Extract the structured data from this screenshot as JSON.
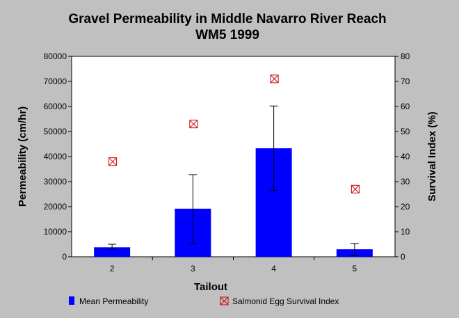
{
  "chart_data": {
    "type": "bar",
    "title": "Gravel Permeability in Middle Navarro River Reach",
    "subtitle": "WM5 1999",
    "xlabel": "Tailout",
    "ylabel": "Permeability (cm/hr)",
    "y2label": "Survival Index (%)",
    "categories": [
      "2",
      "3",
      "4",
      "5"
    ],
    "ylim": [
      0,
      80000
    ],
    "y2lim": [
      0,
      80
    ],
    "yticks": [
      0,
      10000,
      20000,
      30000,
      40000,
      50000,
      60000,
      70000,
      80000
    ],
    "y2ticks": [
      0,
      10,
      20,
      30,
      40,
      50,
      60,
      70,
      80
    ],
    "grid": false,
    "legend_placement": "bottom",
    "series": [
      {
        "name": "Mean Permeability",
        "kind": "bar",
        "axis": "left",
        "color": "#0000ff",
        "values": [
          3800,
          19200,
          43300,
          3000
        ],
        "error_low": [
          2800,
          5300,
          26500,
          500
        ],
        "error_high": [
          5000,
          32800,
          60200,
          5300
        ]
      },
      {
        "name": "Salmonid Egg Survival Index",
        "kind": "scatter",
        "axis": "right",
        "color": "#cc0000",
        "marker": "boxed-x",
        "values": [
          38,
          53,
          71,
          27
        ]
      }
    ]
  }
}
